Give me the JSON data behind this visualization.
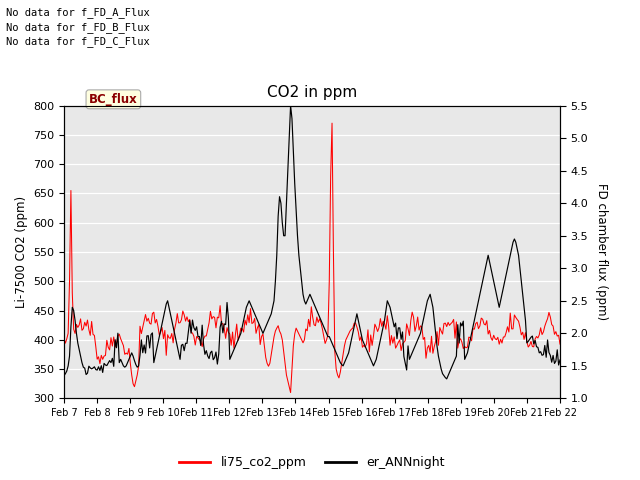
{
  "title": "CO2 in ppm",
  "ylabel_left": "Li-7500 CO2 (ppm)",
  "ylabel_right": "FD chamber flux (ppm)",
  "ylim_left": [
    300,
    800
  ],
  "ylim_right": [
    1.0,
    5.5
  ],
  "xtick_labels": [
    "Feb 7",
    "Feb 8",
    "Feb 9",
    "Feb 10",
    "Feb 11",
    "Feb 12",
    "Feb 13",
    "Feb 14",
    "Feb 15",
    "Feb 16",
    "Feb 17",
    "Feb 18",
    "Feb 19",
    "Feb 20",
    "Feb 21",
    "Feb 22"
  ],
  "yticks_left": [
    300,
    350,
    400,
    450,
    500,
    550,
    600,
    650,
    700,
    750,
    800
  ],
  "yticks_right": [
    1.0,
    1.5,
    2.0,
    2.5,
    3.0,
    3.5,
    4.0,
    4.5,
    5.0,
    5.5
  ],
  "legend_labels": [
    "li75_co2_ppm",
    "er_ANNnight"
  ],
  "line_colors": [
    "red",
    "black"
  ],
  "annotations": [
    "No data for f_FD_A_Flux",
    "No data for f_FD_B_Flux",
    "No data for f_FD_C_Flux"
  ],
  "legend_box_label": "BC_flux",
  "plot_bg": "#e8e8e8"
}
